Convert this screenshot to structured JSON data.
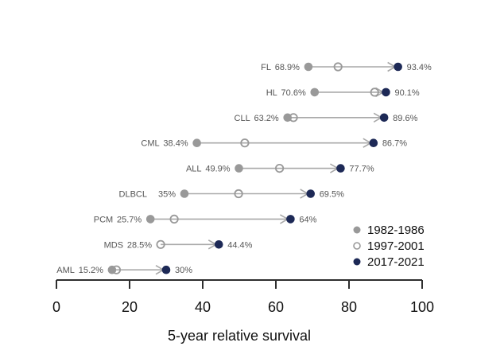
{
  "chart_data": {
    "type": "dumbbell",
    "xlabel": "5-year relative survival",
    "xlim": [
      0,
      100
    ],
    "xticks": [
      0,
      20,
      40,
      60,
      80,
      100
    ],
    "grid": false,
    "legend_position": "bottom-right-inside",
    "legend": [
      {
        "label": "1982-1986",
        "marker": "filled-gray"
      },
      {
        "label": "1997-2001",
        "marker": "open-gray"
      },
      {
        "label": "2017-2021",
        "marker": "filled-navy"
      }
    ],
    "colors": {
      "gray": "#999999",
      "line": "#a9a9a9",
      "navy": "#1d2956",
      "open_fill": "none",
      "label_text": "#555555",
      "axis_text": "#111111",
      "axis_line": "#2e2e2e",
      "background": "#ffffff"
    },
    "rows": [
      {
        "label": "FL",
        "start_text": "68.9%",
        "end_text": "93.4%",
        "values": {
          "1982-1986": 68.9,
          "1997-2001": 77,
          "2017-2021": 93.4
        }
      },
      {
        "label": "HL",
        "start_text": "70.6%",
        "end_text": "90.1%",
        "values": {
          "1982-1986": 70.6,
          "1997-2001": 87,
          "2017-2021": 90.1
        }
      },
      {
        "label": "CLL",
        "start_text": "63.2%",
        "end_text": "89.6%",
        "values": {
          "1982-1986": 63.2,
          "1997-2001": 64.8,
          "2017-2021": 89.6
        }
      },
      {
        "label": "CML",
        "start_text": "38.4%",
        "end_text": "86.7%",
        "values": {
          "1982-1986": 38.4,
          "1997-2001": 51.5,
          "2017-2021": 86.7
        }
      },
      {
        "label": "ALL",
        "start_text": "49.9%",
        "end_text": "77.7%",
        "values": {
          "1982-1986": 49.9,
          "1997-2001": 61,
          "2017-2021": 77.7
        }
      },
      {
        "label": "DLBCL",
        "start_text": "35%",
        "end_text": "69.5%",
        "values": {
          "1982-1986": 35,
          "1997-2001": 49.8,
          "2017-2021": 69.5
        }
      },
      {
        "label": "PCM",
        "start_text": "25.7%",
        "end_text": "64%",
        "values": {
          "1982-1986": 25.7,
          "1997-2001": 32.2,
          "2017-2021": 64
        }
      },
      {
        "label": "MDS",
        "start_text": "28.5%",
        "end_text": "44.4%",
        "values": {
          "1982-1986": null,
          "1997-2001": 28.5,
          "2017-2021": 44.4
        }
      },
      {
        "label": "AML",
        "start_text": "15.2%",
        "end_text": "30%",
        "values": {
          "1982-1986": 15.2,
          "1997-2001": 16.4,
          "2017-2021": 30
        }
      }
    ]
  }
}
